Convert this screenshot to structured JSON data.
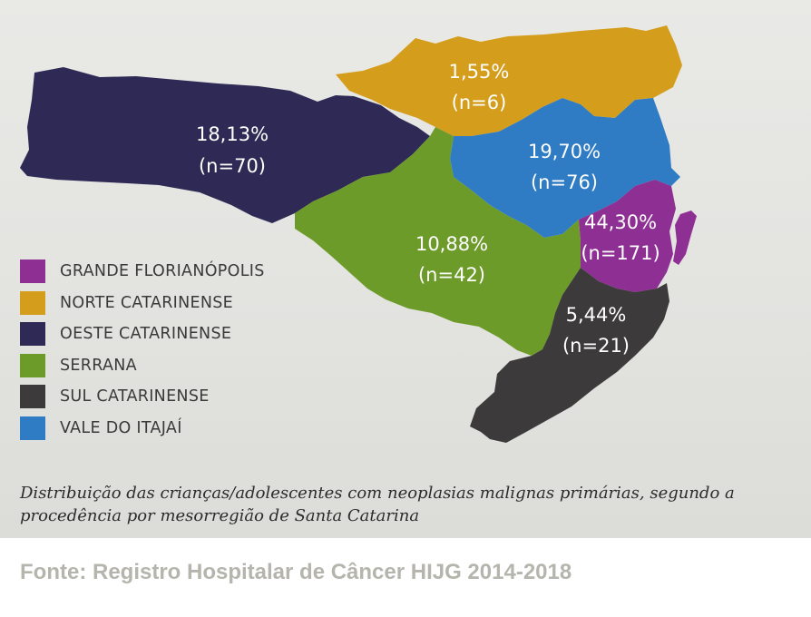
{
  "map": {
    "regions": [
      {
        "id": "oeste",
        "name": "OESTE CATARINENSE",
        "pct": "18,13%",
        "n": "(n=70)",
        "color": "#2f2a55"
      },
      {
        "id": "norte",
        "name": "NORTE CATARINENSE",
        "pct": "1,55%",
        "n": "(n=6)",
        "color": "#d59d1c"
      },
      {
        "id": "vale",
        "name": "VALE DO ITAJAÍ",
        "pct": "19,70%",
        "n": "(n=76)",
        "color": "#2f7cc4"
      },
      {
        "id": "serrana",
        "name": "SERRANA",
        "pct": "10,88%",
        "n": "(n=42)",
        "color": "#6d9b2a"
      },
      {
        "id": "grande",
        "name": "GRANDE FLORIANÓPOLIS",
        "pct": "44,30%",
        "n": "(n=171)",
        "color": "#8d2f93"
      },
      {
        "id": "sul",
        "name": "SUL CATARINENSE",
        "pct": "5,44%",
        "n": "(n=21)",
        "color": "#3c3a3a"
      }
    ]
  },
  "legend": [
    {
      "label": "GRANDE FLORIANÓPOLIS",
      "color": "#8d2f93"
    },
    {
      "label": "NORTE CATARINENSE",
      "color": "#d59d1c"
    },
    {
      "label": "OESTE CATARINENSE",
      "color": "#2f2a55"
    },
    {
      "label": "SERRANA",
      "color": "#6d9b2a"
    },
    {
      "label": "SUL CATARINENSE",
      "color": "#3c3a3a"
    },
    {
      "label": "VALE DO ITAJAÍ",
      "color": "#2f7cc4"
    }
  ],
  "caption": "Distribuição das crianças/adolescentes com neoplasias malignas primárias, segundo a procedência por mesorregião de Santa Catarina",
  "source": "Fonte: Registro Hospitalar de Câncer HIJG 2014-2018"
}
